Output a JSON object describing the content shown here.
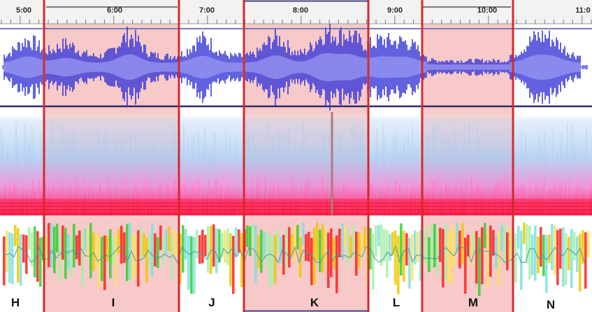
{
  "timeline": {
    "ticks": [
      "5:00",
      "6:00",
      "7:00",
      "8:00",
      "9:00",
      "10:00",
      "11:0"
    ]
  },
  "segments": [
    {
      "label": "H",
      "highlighted": false
    },
    {
      "label": "I",
      "highlighted": true
    },
    {
      "label": "J",
      "highlighted": false
    },
    {
      "label": "K",
      "highlighted": true
    },
    {
      "label": "L",
      "highlighted": false
    },
    {
      "label": "M",
      "highlighted": true
    },
    {
      "label": "N",
      "highlighted": false
    }
  ],
  "colors": {
    "waveform_dark": "#3a3ad8",
    "waveform_light": "#8a8af0",
    "highlight": "#f7c9c9",
    "boundary": "#d42a2a",
    "spectrogram_low": "#ff2050",
    "spectrogram_mid": "#ff70c8",
    "spectrogram_high": "#a8c8f0"
  }
}
